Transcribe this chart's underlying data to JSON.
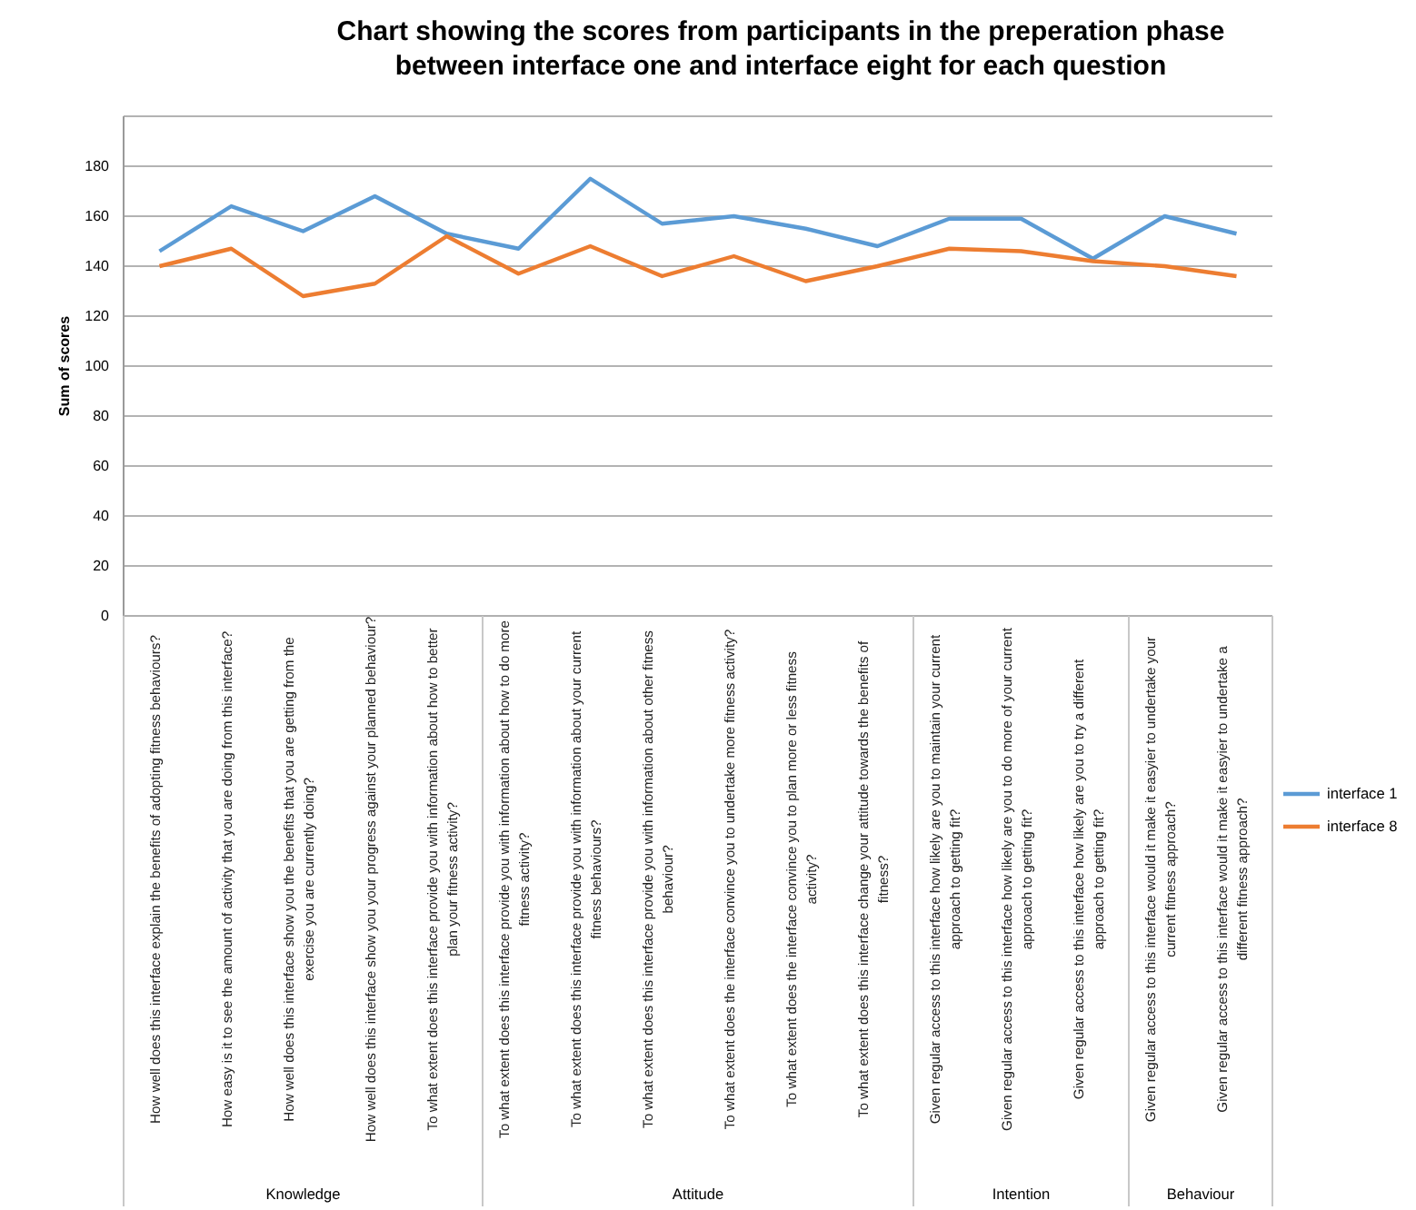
{
  "chart_data": {
    "type": "line",
    "title": "Chart showing the scores from participants in the preperation phase between interface one and interface eight for each question",
    "ylabel": "Sum of scores",
    "categories": [
      "How well does this interface explain the benefits of adopting fitness behaviours?",
      "How easy is it to see the amount of activity that you are doing from this interface?",
      "How well does this interface show you the benefits that you are getting from the exercise you are currently doing?",
      "How well does this interface show you your progress against your planned behaviour?",
      "To what extent does this interface provide you with information about how to better plan your fitness activity?",
      "To what extent does this interface provide you with information about how to do more fitness activity?",
      "To what extent does this interface provide you with information about your current fitness behaviours?",
      "To what extent does this interface provide you with information about other fitness behaviour?",
      "To what extent does the interface convince you to undertake more fitness activity?",
      "To what extent does the interface convince you to plan more or less fitness activity?",
      "To what extent does this interface change your attitude towards the benefits of fitness?",
      "Given regular access to this interface how likely are you to maintain your current approach to getting fit?",
      "Given regular access to this interface how likely are you to do more of your current approach to getting fit?",
      "Given regular access to this interface how likely are you to try a different approach to getting fit?",
      "Given regular access to this interface would it make it easyier to undertake your current fitness approach?",
      "Given regular access to this interface would it make it easyier to undertake a different fitness approach?"
    ],
    "series": [
      {
        "name": "interface 1",
        "color": "#5b9bd5",
        "values": [
          146,
          164,
          154,
          168,
          153,
          147,
          175,
          157,
          160,
          155,
          148,
          159,
          159,
          143,
          160,
          153
        ]
      },
      {
        "name": "interface 8",
        "color": "#ed7d31",
        "values": [
          140,
          147,
          128,
          133,
          152,
          137,
          148,
          136,
          144,
          134,
          140,
          147,
          146,
          142,
          140,
          136
        ]
      }
    ],
    "ylim": [
      0,
      200
    ],
    "yticks": [
      0,
      20,
      40,
      60,
      80,
      100,
      120,
      140,
      160,
      180,
      {
        "value": 200,
        "label": null
      }
    ],
    "grid": "y",
    "legend": "right",
    "marker": "none",
    "line_style": "solid",
    "annotations": [
      "Knowledge",
      "Attitude",
      "Intention",
      "Behaviour"
    ]
  }
}
